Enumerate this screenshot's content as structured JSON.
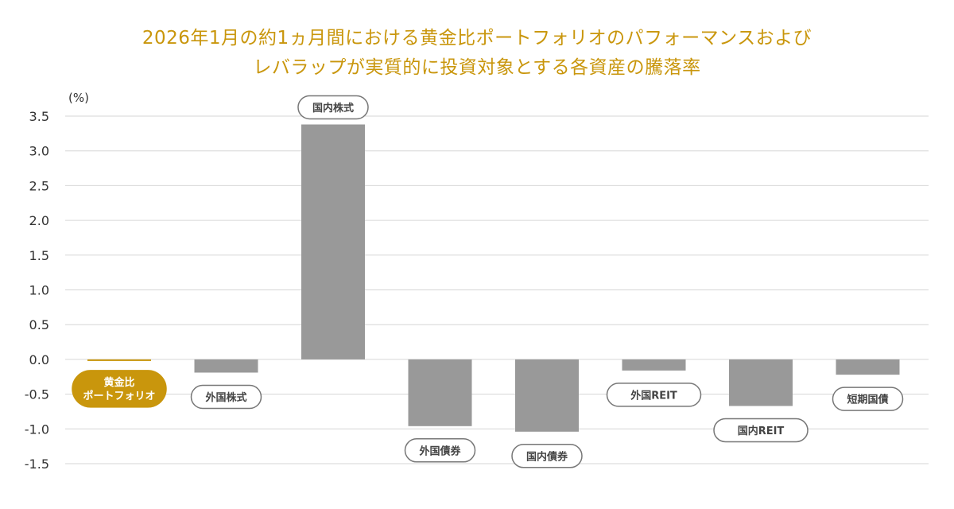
{
  "title_line1": "2026年1月の約1ヵ月間における黄金比ポートフォリオのパフォーマンスおよび",
  "title_line2": "レバラップが実質的に投資対象とする各資産の騰落率",
  "colors": {
    "title": "#c9960c",
    "highlight": "#c9960c",
    "bar": "#999999",
    "grid": "#d6d6d6",
    "label_border": "#777777"
  },
  "chart_data": {
    "type": "bar",
    "unit_label": "(%)",
    "ylim": [
      -1.5,
      3.5
    ],
    "yticks": [
      "3.5",
      "3.0",
      "2.5",
      "2.0",
      "1.5",
      "1.0",
      "0.5",
      "0.0",
      "-0.5",
      "-1.0",
      "-1.5"
    ],
    "ytick_values": [
      3.5,
      3.0,
      2.5,
      2.0,
      1.5,
      1.0,
      0.5,
      0.0,
      -0.5,
      -1.0,
      -1.5
    ],
    "grid": true,
    "categories": [
      {
        "label": [
          "黄金比",
          "ポートフォリオ"
        ],
        "value": -0.02,
        "highlight": true
      },
      {
        "label": [
          "外国株式"
        ],
        "value": -0.19,
        "highlight": false
      },
      {
        "label": [
          "国内株式"
        ],
        "value": 3.38,
        "highlight": false
      },
      {
        "label": [
          "外国債券"
        ],
        "value": -0.96,
        "highlight": false
      },
      {
        "label": [
          "国内債券"
        ],
        "value": -1.04,
        "highlight": false
      },
      {
        "label": [
          "外国REIT"
        ],
        "value": -0.16,
        "highlight": false
      },
      {
        "label": [
          "国内REIT"
        ],
        "value": -0.67,
        "highlight": false
      },
      {
        "label": [
          "短期国債"
        ],
        "value": -0.22,
        "highlight": false
      }
    ]
  }
}
